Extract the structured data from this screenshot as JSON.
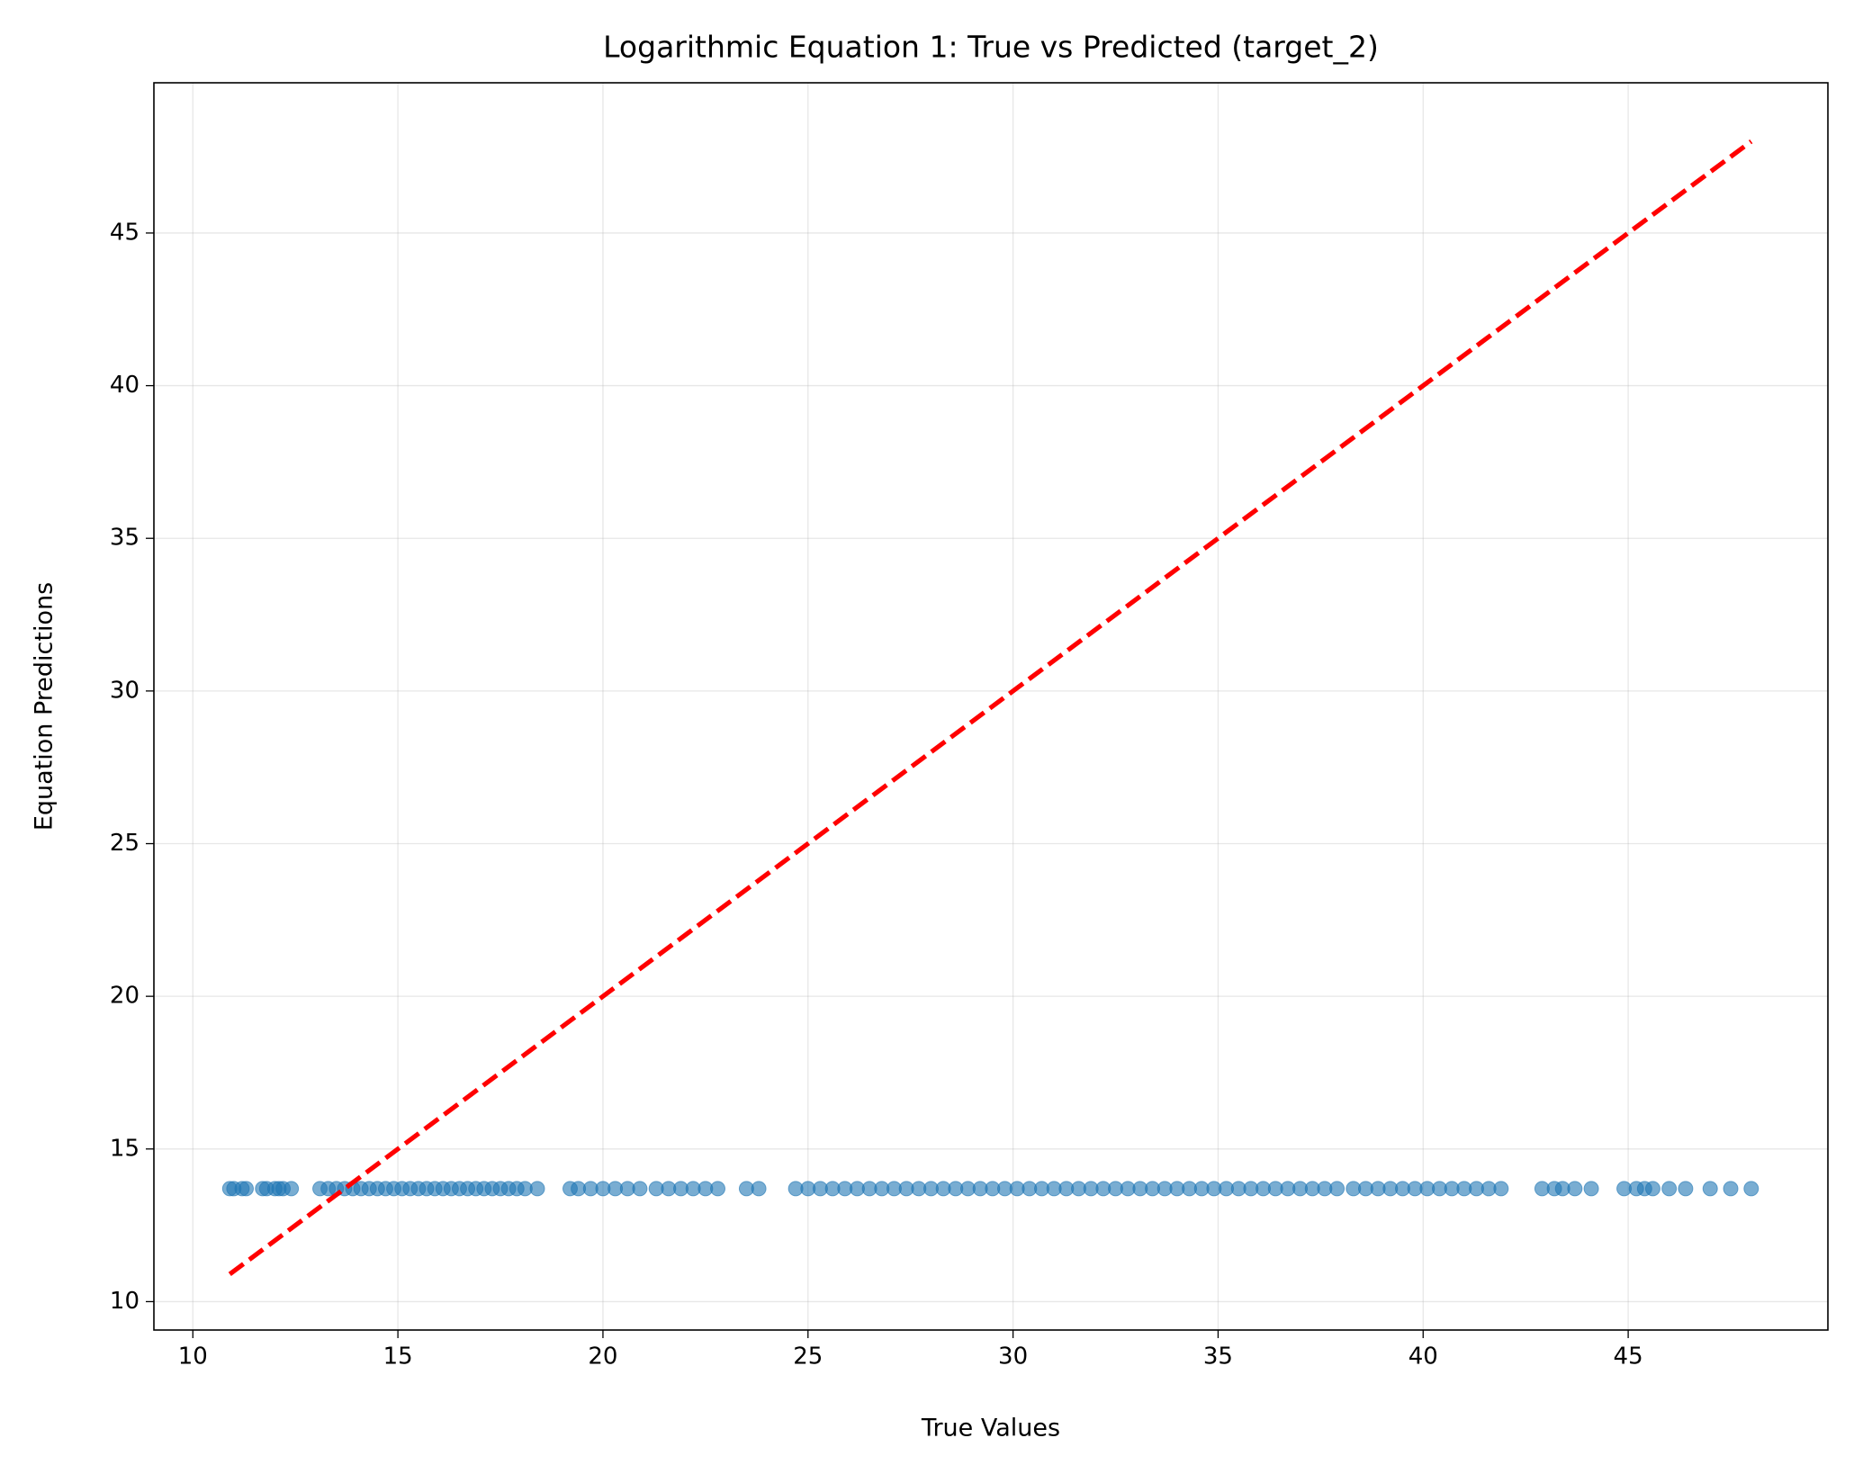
{
  "chart_data": {
    "type": "scatter",
    "title": "Logarithmic Equation 1: True vs Predicted (target_2)",
    "x_label": "True Values",
    "y_label": "Equation Predictions",
    "xlim": [
      9.05,
      49.87
    ],
    "ylim": [
      9.07,
      49.92
    ],
    "xticks": [
      10,
      15,
      20,
      25,
      30,
      35,
      40,
      45
    ],
    "yticks": [
      10,
      15,
      20,
      25,
      30,
      35,
      40,
      45
    ],
    "grid": true,
    "series": [
      {
        "type": "scatter",
        "color": "#1f77b4",
        "x": [
          10.9,
          11.0,
          11.2,
          11.3,
          11.7,
          11.8,
          12.0,
          12.1,
          12.2,
          12.4,
          13.1,
          13.3,
          13.5,
          13.7,
          13.9,
          14.1,
          14.3,
          14.5,
          14.7,
          14.9,
          15.1,
          15.3,
          15.5,
          15.7,
          15.9,
          16.1,
          16.3,
          16.5,
          16.7,
          16.9,
          17.1,
          17.3,
          17.5,
          17.7,
          17.9,
          18.1,
          18.4,
          19.2,
          19.4,
          19.7,
          20.0,
          20.3,
          20.6,
          20.9,
          21.3,
          21.6,
          21.9,
          22.2,
          22.5,
          22.8,
          23.5,
          23.8,
          24.7,
          25.0,
          25.3,
          25.6,
          25.9,
          26.2,
          26.5,
          26.8,
          27.1,
          27.4,
          27.7,
          28.0,
          28.3,
          28.6,
          28.9,
          29.2,
          29.5,
          29.8,
          30.1,
          30.4,
          30.7,
          31.0,
          31.3,
          31.6,
          31.9,
          32.2,
          32.5,
          32.8,
          33.1,
          33.4,
          33.7,
          34.0,
          34.3,
          34.6,
          34.9,
          35.2,
          35.5,
          35.8,
          36.1,
          36.4,
          36.7,
          37.0,
          37.3,
          37.6,
          37.9,
          38.3,
          38.6,
          38.9,
          39.2,
          39.5,
          39.8,
          40.1,
          40.4,
          40.7,
          41.0,
          41.3,
          41.6,
          41.9,
          42.9,
          43.2,
          43.4,
          43.7,
          44.1,
          44.9,
          45.2,
          45.4,
          45.6,
          46.0,
          46.4,
          47.0,
          47.5,
          48.0
        ],
        "values": [
          13.7,
          13.7,
          13.7,
          13.7,
          13.7,
          13.7,
          13.7,
          13.7,
          13.7,
          13.7,
          13.7,
          13.7,
          13.7,
          13.7,
          13.7,
          13.7,
          13.7,
          13.7,
          13.7,
          13.7,
          13.7,
          13.7,
          13.7,
          13.7,
          13.7,
          13.7,
          13.7,
          13.7,
          13.7,
          13.7,
          13.7,
          13.7,
          13.7,
          13.7,
          13.7,
          13.7,
          13.7,
          13.7,
          13.7,
          13.7,
          13.7,
          13.7,
          13.7,
          13.7,
          13.7,
          13.7,
          13.7,
          13.7,
          13.7,
          13.7,
          13.7,
          13.7,
          13.7,
          13.7,
          13.7,
          13.7,
          13.7,
          13.7,
          13.7,
          13.7,
          13.7,
          13.7,
          13.7,
          13.7,
          13.7,
          13.7,
          13.7,
          13.7,
          13.7,
          13.7,
          13.7,
          13.7,
          13.7,
          13.7,
          13.7,
          13.7,
          13.7,
          13.7,
          13.7,
          13.7,
          13.7,
          13.7,
          13.7,
          13.7,
          13.7,
          13.7,
          13.7,
          13.7,
          13.7,
          13.7,
          13.7,
          13.7,
          13.7,
          13.7,
          13.7,
          13.7,
          13.7,
          13.7,
          13.7,
          13.7,
          13.7,
          13.7,
          13.7,
          13.7,
          13.7,
          13.7,
          13.7,
          13.7,
          13.7,
          13.7,
          13.7,
          13.7,
          13.7,
          13.7,
          13.7,
          13.7,
          13.7,
          13.7,
          13.7,
          13.7,
          13.7,
          13.7,
          13.7,
          13.7
        ]
      },
      {
        "type": "line",
        "color": "#ff0000",
        "dashed": true,
        "x": [
          10.9,
          48.0
        ],
        "values": [
          10.9,
          48.0
        ]
      }
    ]
  }
}
